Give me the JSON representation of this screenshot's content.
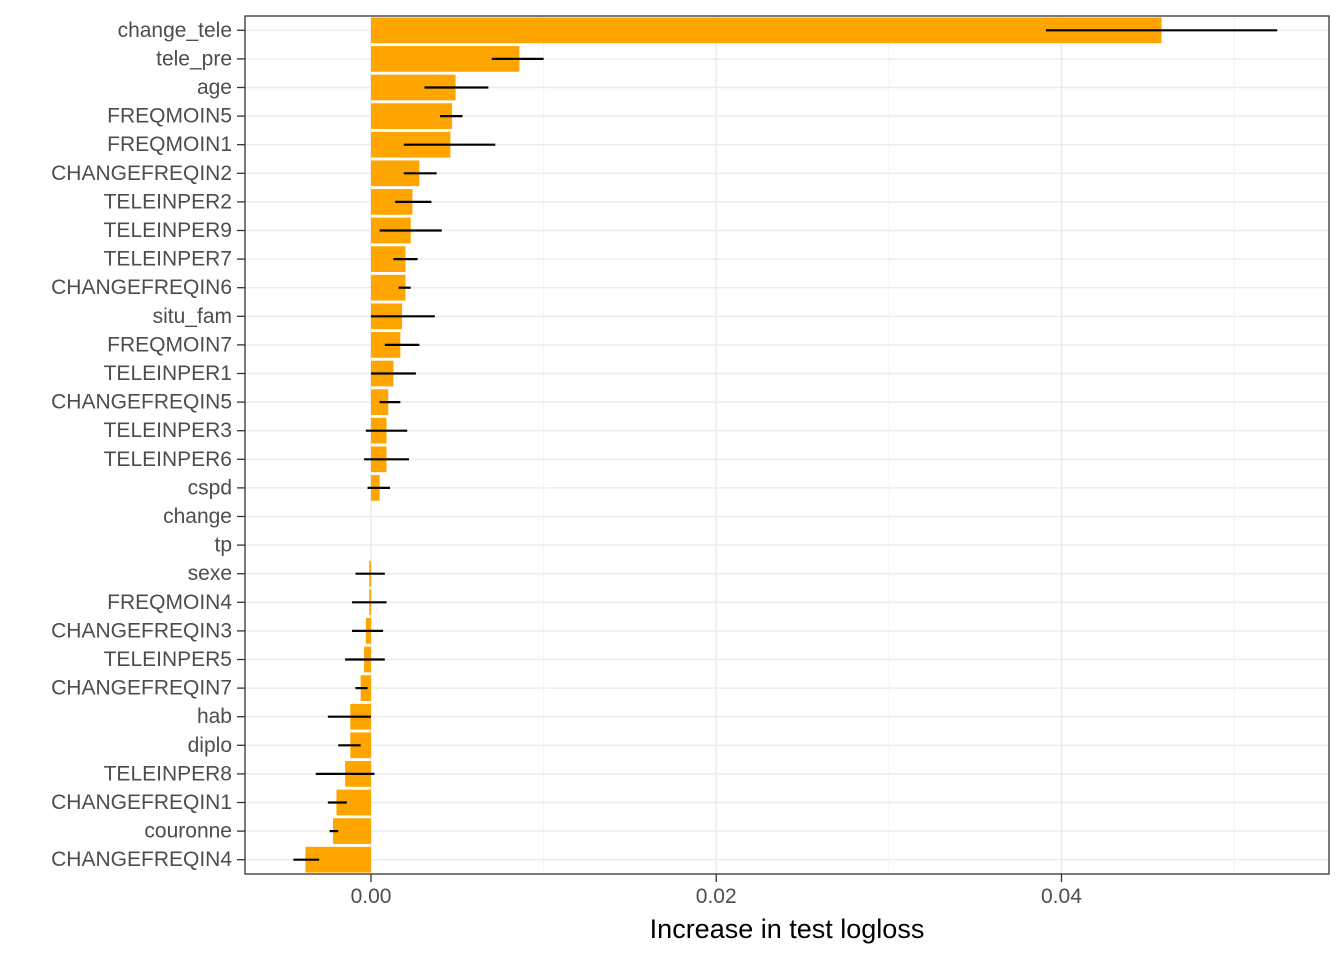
{
  "chart_data": {
    "type": "bar",
    "orientation": "horizontal",
    "xlabel": "Increase in test logloss",
    "ylabel": "",
    "title": "",
    "xlim": [
      -0.0073,
      0.0555
    ],
    "x_ticks": [
      0.0,
      0.02,
      0.04
    ],
    "x_tick_labels": [
      "0.00",
      "0.02",
      "0.04"
    ],
    "grid": true,
    "legend": "none",
    "bar_color": "#FFA500",
    "error_bar_color": "#000000",
    "categories": [
      "change_tele",
      "tele_pre",
      "age",
      "FREQMOIN5",
      "FREQMOIN1",
      "CHANGEFREQIN2",
      "TELEINPER2",
      "TELEINPER9",
      "TELEINPER7",
      "CHANGEFREQIN6",
      "situ_fam",
      "FREQMOIN7",
      "TELEINPER1",
      "CHANGEFREQIN5",
      "TELEINPER3",
      "TELEINPER6",
      "cspd",
      "change",
      "tp",
      "sexe",
      "FREQMOIN4",
      "CHANGEFREQIN3",
      "TELEINPER5",
      "CHANGEFREQIN7",
      "hab",
      "diplo",
      "TELEINPER8",
      "CHANGEFREQIN1",
      "couronne",
      "CHANGEFREQIN4"
    ],
    "values": [
      0.0458,
      0.0086,
      0.0049,
      0.0047,
      0.0046,
      0.0028,
      0.0024,
      0.0023,
      0.002,
      0.002,
      0.0018,
      0.0017,
      0.0013,
      0.001,
      0.0009,
      0.0009,
      0.0005,
      0.0,
      0.0,
      -0.0001,
      -0.0001,
      -0.0003,
      -0.0004,
      -0.0006,
      -0.0012,
      -0.0012,
      -0.0015,
      -0.002,
      -0.0022,
      -0.0038
    ],
    "error_low": [
      0.0391,
      0.007,
      0.0031,
      0.004,
      0.0019,
      0.0019,
      0.0014,
      0.0005,
      0.0013,
      0.0016,
      0.0,
      0.0008,
      0.0,
      0.0005,
      -0.0003,
      -0.0004,
      -0.0002,
      0.0,
      0.0,
      -0.0009,
      -0.0011,
      -0.0011,
      -0.0015,
      -0.0009,
      -0.0025,
      -0.0019,
      -0.0032,
      -0.0025,
      -0.0024,
      -0.0045
    ],
    "error_high": [
      0.0525,
      0.01,
      0.0068,
      0.0053,
      0.0072,
      0.0038,
      0.0035,
      0.0041,
      0.0027,
      0.0023,
      0.0037,
      0.0028,
      0.0026,
      0.0017,
      0.0021,
      0.0022,
      0.0011,
      0.0,
      0.0,
      0.0008,
      0.0009,
      0.0007,
      0.0008,
      -0.0002,
      0.0,
      -0.0006,
      0.0002,
      -0.0014,
      -0.0019,
      -0.003
    ]
  }
}
